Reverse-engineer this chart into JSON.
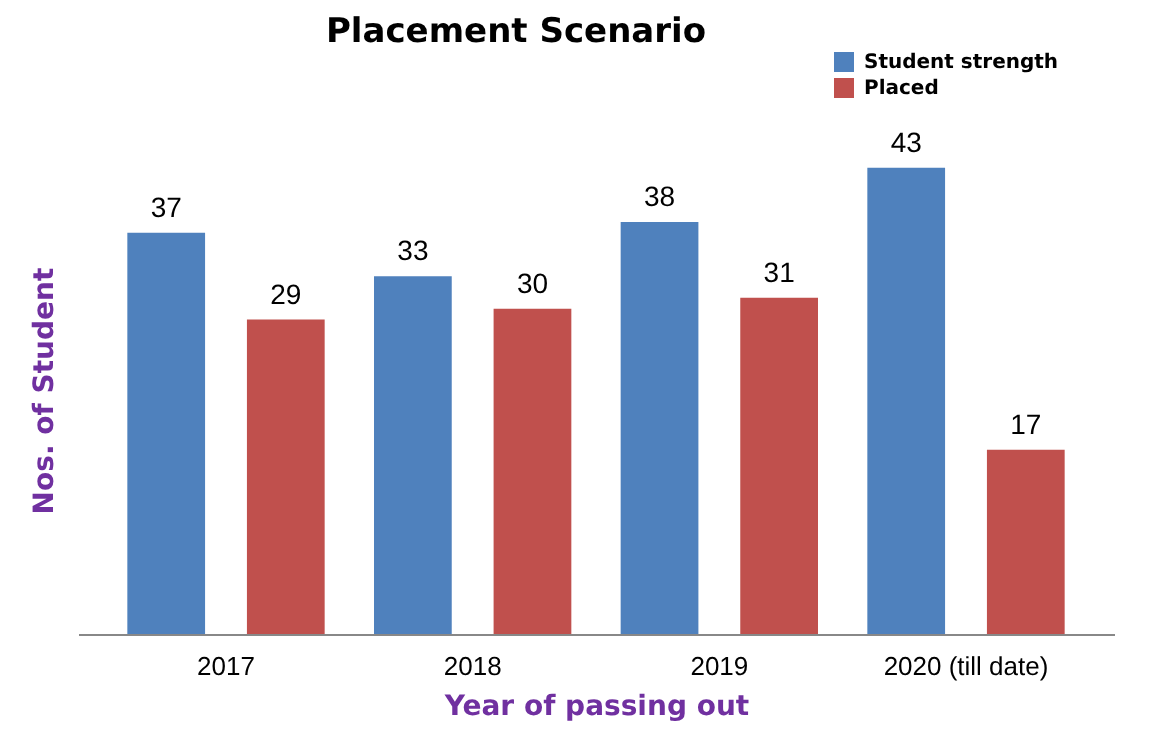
{
  "chart_data": {
    "type": "bar",
    "title": "Placement Scenario",
    "xlabel": "Year of passing out",
    "ylabel": "Nos. of Student",
    "categories": [
      "2017",
      "2018",
      "2019",
      "2020 (till date)"
    ],
    "series": [
      {
        "name": "Student strength",
        "color": "#4f81bd",
        "values": [
          37,
          33,
          38,
          43
        ]
      },
      {
        "name": "Placed",
        "color": "#c0504d",
        "values": [
          29,
          30,
          31,
          17
        ]
      }
    ],
    "data_labels": true,
    "legend": "top right",
    "grid": false,
    "tick_labels": "x"
  }
}
